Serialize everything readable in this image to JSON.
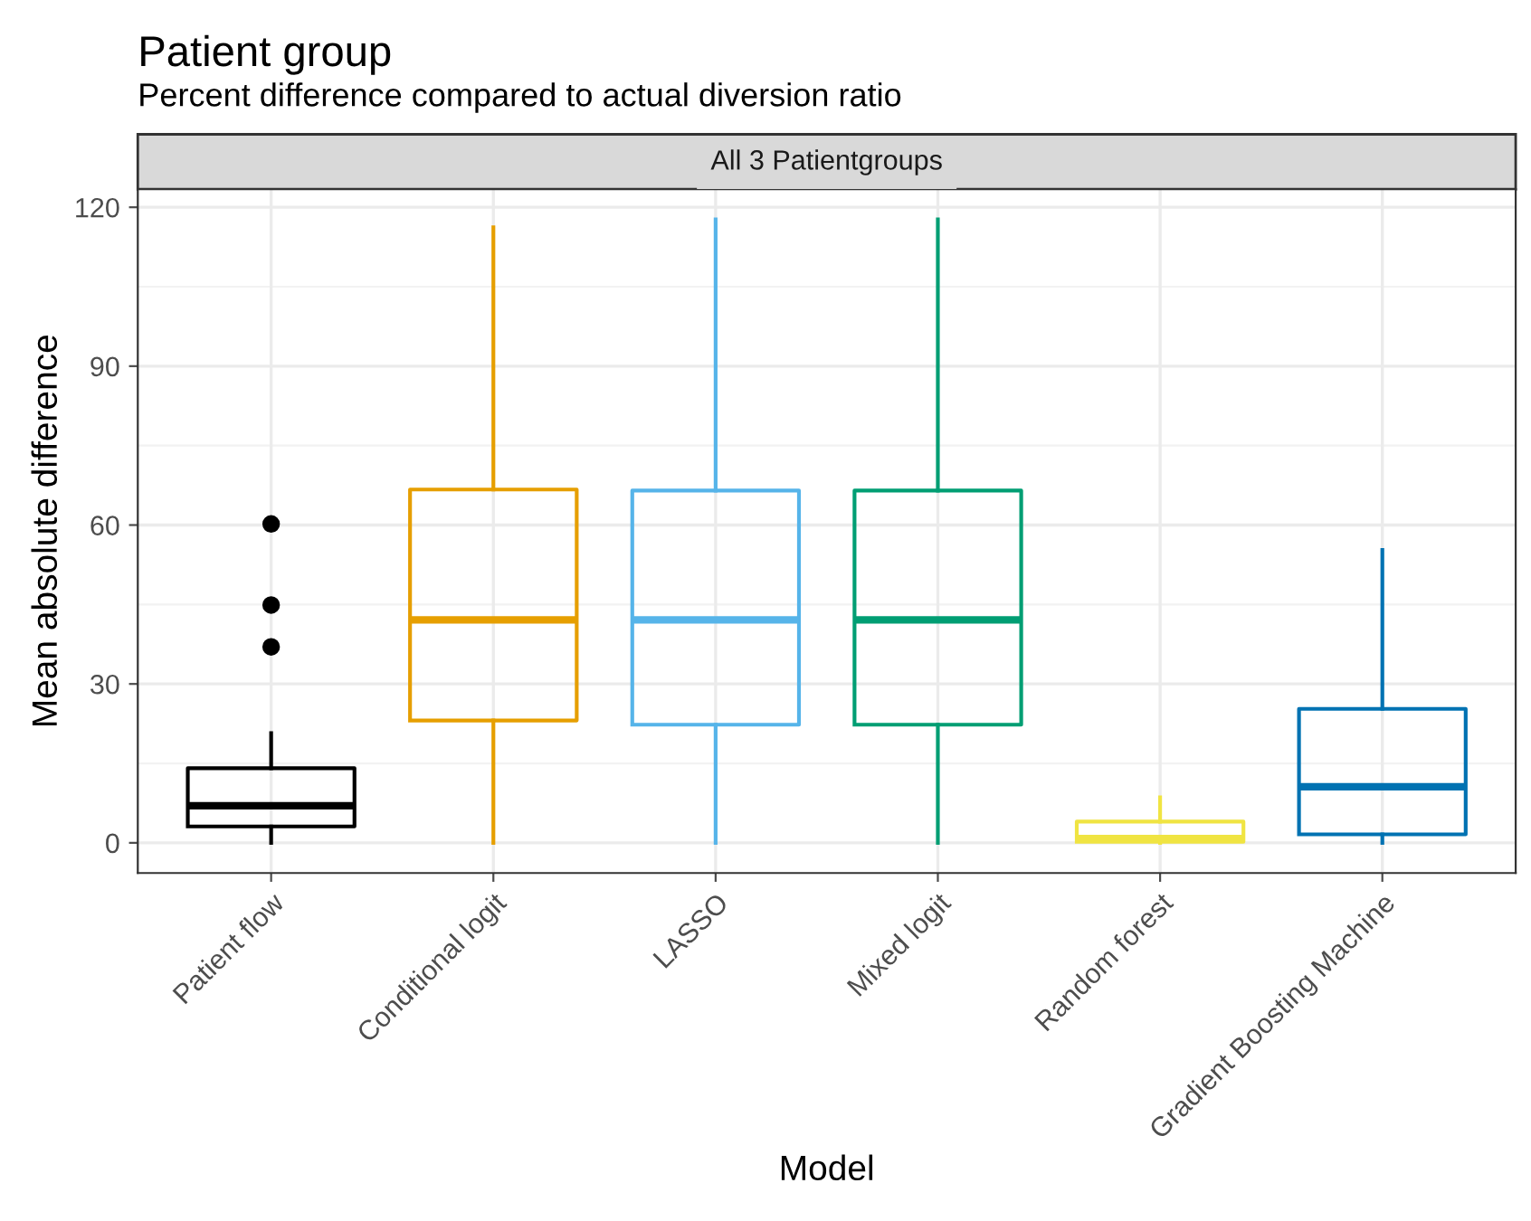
{
  "chart_data": {
    "type": "box",
    "title": "Patient group",
    "subtitle": "Percent difference compared to actual diversion ratio",
    "annotations": [
      "All 3 Patientgroups"
    ],
    "xlabel": "Model",
    "ylabel": "Mean absolute difference",
    "categories": [
      "Patient flow",
      "Conditional logit",
      "LASSO",
      "Mixed logit",
      "Random forest",
      "Gradient Boosting Machine"
    ],
    "colors": [
      "#000000",
      "#e69f00",
      "#56b4e9",
      "#009e73",
      "#f0e442",
      "#0072b2"
    ],
    "boxes": [
      {
        "low": 0,
        "q1": 3.1,
        "median": 7.0,
        "q3": 14.1,
        "high": 20.7,
        "outliers": [
          60.2,
          44.9,
          37.0
        ]
      },
      {
        "low": 0,
        "q1": 23.1,
        "median": 42.1,
        "q3": 66.7,
        "high": 116.2
      },
      {
        "low": 0,
        "q1": 22.3,
        "median": 42.1,
        "q3": 66.5,
        "high": 117.7
      },
      {
        "low": 0,
        "q1": 22.3,
        "median": 42.1,
        "q3": 66.5,
        "high": 117.7
      },
      {
        "low": 0,
        "q1": 0.2,
        "median": 0.8,
        "q3": 4.0,
        "high": 8.6
      },
      {
        "low": 0,
        "q1": 1.6,
        "median": 10.6,
        "q3": 25.3,
        "high": 55.3
      }
    ],
    "ylim": [
      -5.7,
      123.4
    ],
    "yticks": [
      0,
      30,
      60,
      90,
      120
    ],
    "grid": true
  }
}
